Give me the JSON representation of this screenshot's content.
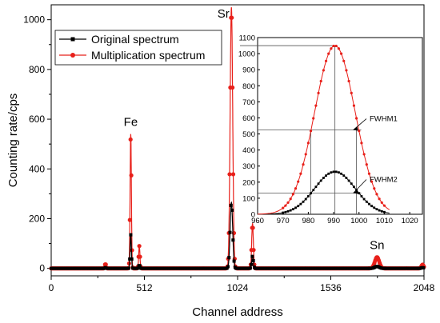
{
  "chart_data": [
    {
      "type": "line",
      "xlabel": "Channel address",
      "ylabel": "Counting rate/cps",
      "xlim": [
        0,
        2048
      ],
      "ylim": [
        -30,
        1060
      ],
      "x_ticks": [
        0,
        512,
        1024,
        1536,
        2048
      ],
      "y_ticks": [
        0,
        200,
        400,
        600,
        800,
        1000
      ],
      "legend_placement": "top-left",
      "grid": false,
      "peaks": [
        {
          "label": "Fe",
          "x": 437
        },
        {
          "label": "Sr",
          "x": 990
        },
        {
          "label": "Sn",
          "x": 1790
        }
      ],
      "peak_components": {
        "center": [
          298,
          437,
          484,
          990,
          1106,
          1790,
          2040
        ],
        "sigma": [
          3,
          3.5,
          3.5,
          7,
          4.5,
          12,
          6
        ],
        "original_heights": [
          3,
          135,
          15,
          265,
          50,
          8,
          3
        ],
        "multiplication_heights": [
          20,
          540,
          90,
          1050,
          180,
          45,
          15
        ]
      },
      "series": [
        {
          "name": "Original spectrum",
          "color": "#000000",
          "marker": "square"
        },
        {
          "name": "Multiplication spectrum",
          "color": "#e8201a",
          "marker": "circle"
        }
      ]
    },
    {
      "type": "line",
      "xlim": [
        960,
        1025
      ],
      "ylim": [
        0,
        1100
      ],
      "x_ticks": [
        960,
        970,
        980,
        990,
        1000,
        1010,
        1020
      ],
      "y_ticks": [
        0,
        100,
        200,
        300,
        400,
        500,
        600,
        700,
        800,
        900,
        1000,
        1100
      ],
      "grid": false,
      "series": [
        {
          "color": "#000000",
          "marker": "square",
          "center": 990.5,
          "sigma": 8,
          "height": 265
        },
        {
          "color": "#e8201a",
          "marker": "circle",
          "center": 990.5,
          "sigma": 8,
          "height": 1050
        }
      ],
      "annotations": [
        {
          "label": "FWHM1",
          "level": 525,
          "x_left": 981,
          "x_right": 999
        },
        {
          "label": "FWHM2",
          "level": 132,
          "x_left": 981,
          "x_right": 999
        }
      ],
      "reference_lines": {
        "peak_level": 1050,
        "peak_x": 990.5
      }
    }
  ]
}
